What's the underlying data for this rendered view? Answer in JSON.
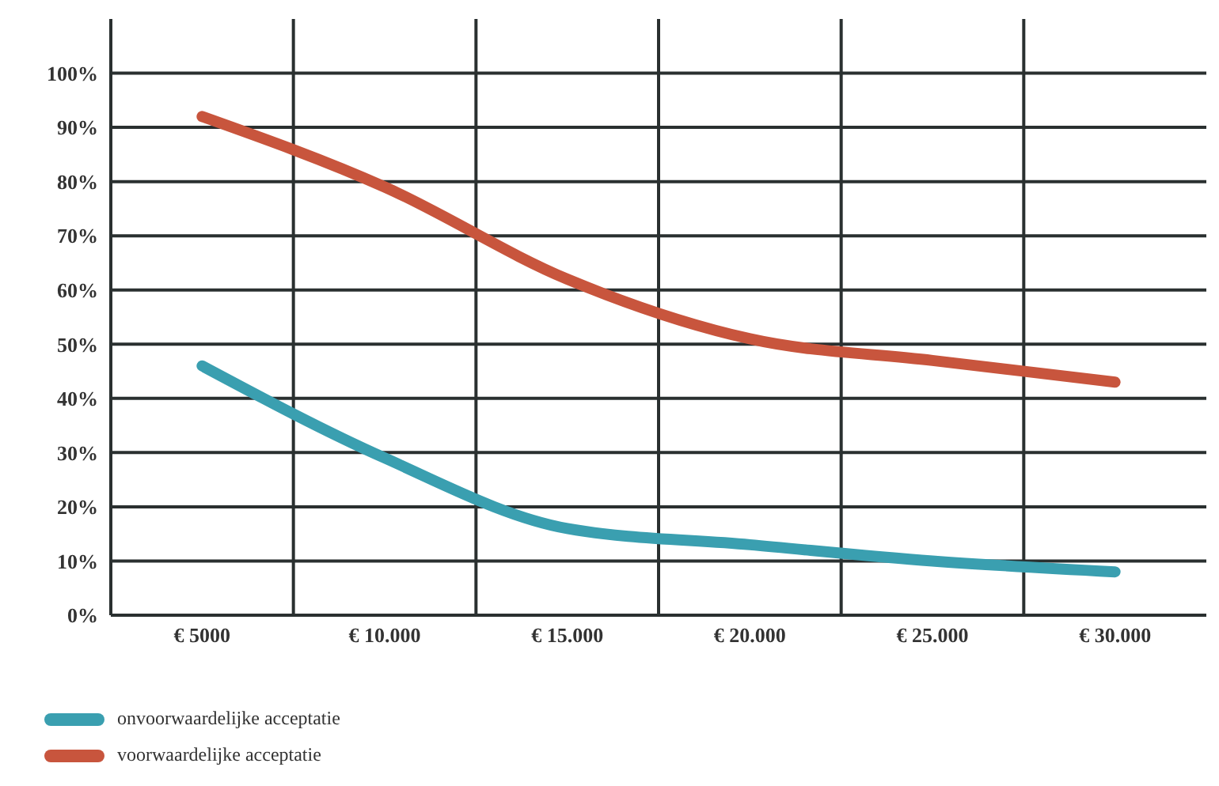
{
  "chart_data": {
    "type": "line",
    "categories": [
      "€ 5000",
      "€ 10.000",
      "€ 15.000",
      "€ 20.000",
      "€ 25.000",
      "€ 30.000"
    ],
    "series": [
      {
        "name": "onvoorwaardelijke acceptatie",
        "color": "#3a9fb0",
        "values": [
          46,
          29,
          16,
          13,
          10,
          8
        ]
      },
      {
        "name": "voorwaardelijke acceptatie",
        "color": "#c8553d",
        "values": [
          92,
          79,
          62,
          51,
          47,
          43
        ]
      }
    ],
    "ylim": [
      0,
      110
    ],
    "yticks": [
      {
        "value": 0,
        "label": "0%"
      },
      {
        "value": 10,
        "label": "10%"
      },
      {
        "value": 20,
        "label": "20%"
      },
      {
        "value": 30,
        "label": "30%"
      },
      {
        "value": 40,
        "label": "40%"
      },
      {
        "value": 50,
        "label": "50%"
      },
      {
        "value": 60,
        "label": "60%"
      },
      {
        "value": 70,
        "label": "70%"
      },
      {
        "value": 80,
        "label": "80%"
      },
      {
        "value": 90,
        "label": "90%"
      },
      {
        "value": 100,
        "label": "100%"
      }
    ],
    "grid": true,
    "legend": "bottom left",
    "marker": "none",
    "line_style": "solid"
  }
}
